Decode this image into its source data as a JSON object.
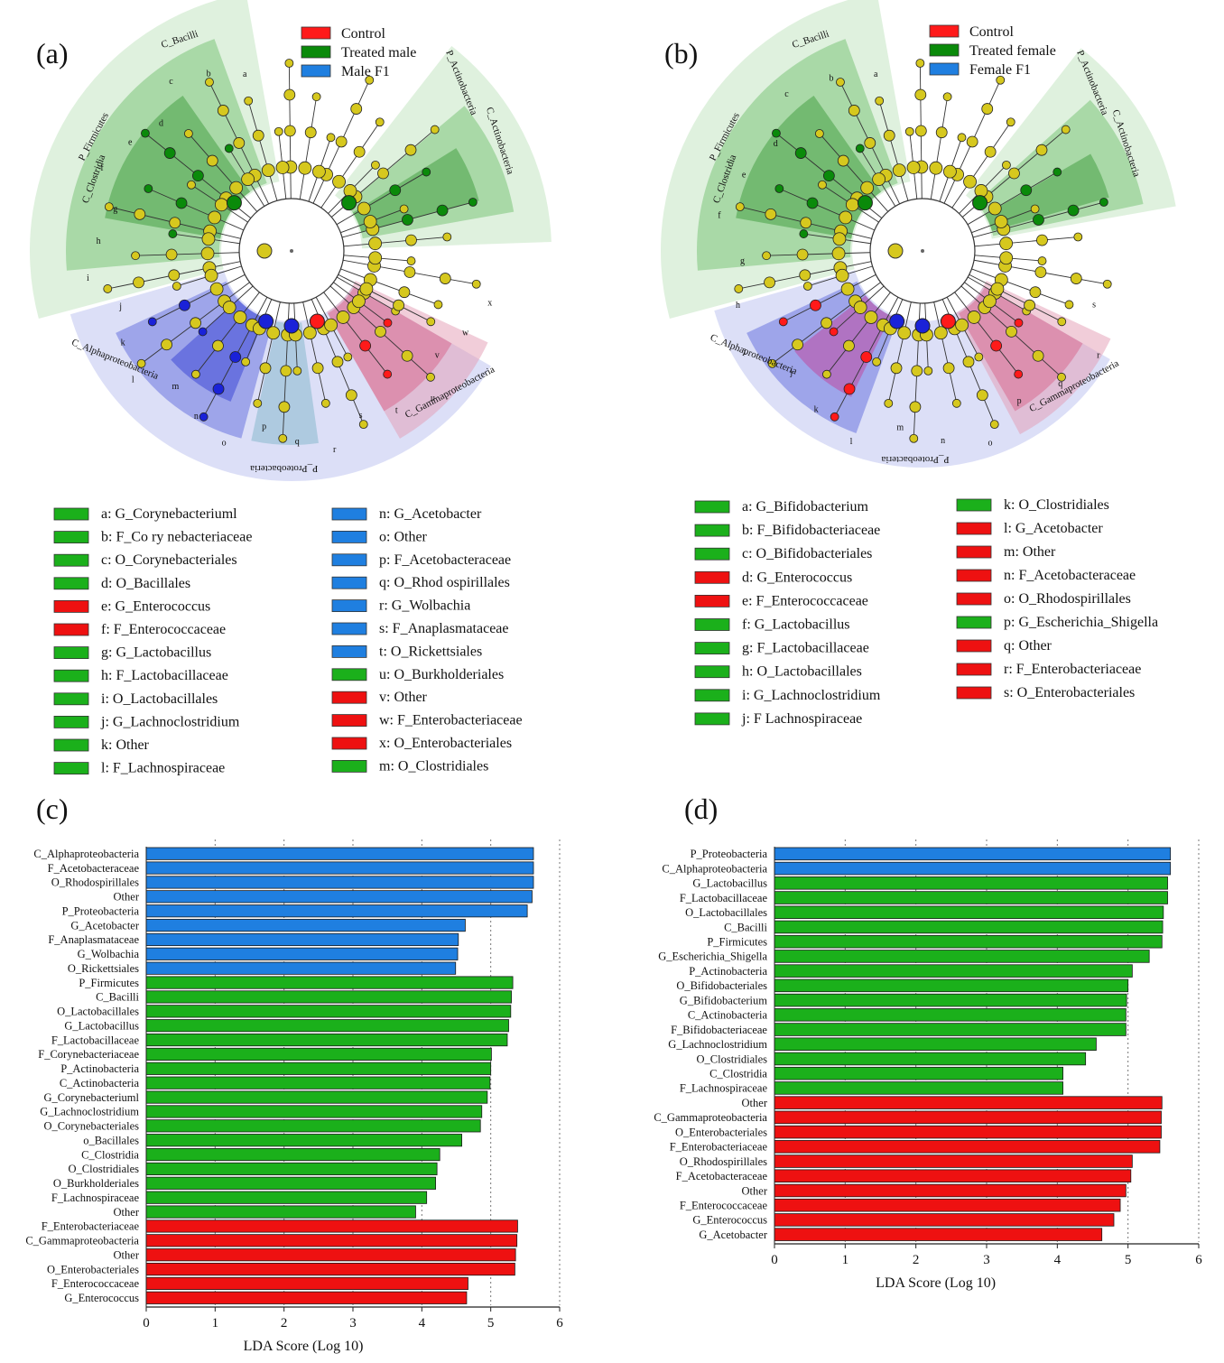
{
  "figure_title": "LEfSe cladograms and LDA score bar charts",
  "colors": {
    "control": "#ff1a1a",
    "treated": "#0a8a0a",
    "f1": "#1f7fe0",
    "green_bar": "#1bb01b",
    "blue_bar": "#1f7fe0",
    "red_bar": "#ee1111",
    "node_default": "#d6c81e",
    "green_sector": "#bfe3bd",
    "blue_sector": "#b9bff0",
    "red_sector": "#e49bb4"
  },
  "panel_a": {
    "label": "(a)",
    "legend": [
      "Control",
      "Treated male",
      "Male F1"
    ],
    "sector_labels": [
      "P_Firmicutes",
      "C_Bacilli",
      "C_Clostridia",
      "P_Actinobacteria",
      "C_Actinobacteria",
      "C_Alphaproteobacteria",
      "P_Proteobacteria",
      "C_Gammaproteobacteria"
    ],
    "inner_letters": [
      "a",
      "b",
      "c",
      "d",
      "e",
      "f",
      "g",
      "h",
      "i",
      "j",
      "k",
      "l",
      "m",
      "n",
      "o",
      "p",
      "q",
      "r",
      "s",
      "t",
      "u",
      "v",
      "w",
      "x"
    ],
    "key_left": [
      {
        "text": "a:  G_Corynebacteriuml",
        "color": "green"
      },
      {
        "text": "b:  F_Co ry nebacteriaceae",
        "color": "green"
      },
      {
        "text": "c:  O_Corynebacteriales",
        "color": "green"
      },
      {
        "text": "d:  O_Bacillales",
        "color": "green"
      },
      {
        "text": "e:  G_Enterococcus",
        "color": "red"
      },
      {
        "text": "f:  F_Enterococcaceae",
        "color": "red"
      },
      {
        "text": "g:  G_Lactobacillus",
        "color": "green"
      },
      {
        "text": "h:  F_Lactobacillaceae",
        "color": "green"
      },
      {
        "text": "i:  O_Lactobacillales",
        "color": "green"
      },
      {
        "text": "j:  G_Lachnoclostridium",
        "color": "green"
      },
      {
        "text": "k:  Other",
        "color": "green"
      },
      {
        "text": "l:  F_Lachnospiraceae",
        "color": "green"
      }
    ],
    "key_right": [
      {
        "text": "n:  G_Acetobacter",
        "color": "blue"
      },
      {
        "text": "o:   Other",
        "color": "blue"
      },
      {
        "text": "p:  F_Acetobacteraceae",
        "color": "blue"
      },
      {
        "text": "q:  O_Rhod ospirillales",
        "color": "blue"
      },
      {
        "text": "r:   G_Wolbachia",
        "color": "blue"
      },
      {
        "text": "s:   F_Anaplasmataceae",
        "color": "blue"
      },
      {
        "text": "t:   O_Rickettsiales",
        "color": "blue"
      },
      {
        "text": "u:   O_Burkholderiales",
        "color": "green"
      },
      {
        "text": "v:   Other",
        "color": "red"
      },
      {
        "text": "w:  F_Enterobacteriaceae",
        "color": "red"
      },
      {
        "text": "x:   O_Enterobacteriales",
        "color": "red"
      },
      {
        "text": "m:  O_Clostridiales",
        "color": "green"
      }
    ]
  },
  "panel_b": {
    "label": "(b)",
    "legend": [
      "Control",
      "Treated female",
      "Female F1"
    ],
    "sector_labels": [
      "P_Firmicutes",
      "C_Bacilli",
      "C_Clostridia",
      "P_Actinobacteria",
      "C_Actinobacteria",
      "C_Alphaproteobacteria",
      "P_Proteobacteria",
      "C_Gammaproteobacteria"
    ],
    "inner_letters": [
      "a",
      "b",
      "c",
      "d",
      "e",
      "f",
      "g",
      "h",
      "i",
      "j",
      "k",
      "l",
      "m",
      "n",
      "o",
      "p",
      "q",
      "r",
      "s"
    ],
    "key_left": [
      {
        "text": "a: G_Bifidobacterium",
        "color": "green"
      },
      {
        "text": "b: F_Bifidobacteriaceae",
        "color": "green"
      },
      {
        "text": "c: O_Bifidobacteriales",
        "color": "green"
      },
      {
        "text": "d: G_Enterococcus",
        "color": "red"
      },
      {
        "text": "e: F_Enterococcaceae",
        "color": "red"
      },
      {
        "text": "f: G_Lactobacillus",
        "color": "green"
      },
      {
        "text": "g: F_Lactobacillaceae",
        "color": "green"
      },
      {
        "text": "h: O_Lactobacillales",
        "color": "green"
      },
      {
        "text": "i: G_Lachnoclostridium",
        "color": "green"
      },
      {
        "text": "j: F Lachnospiraceae",
        "color": "green"
      }
    ],
    "key_right": [
      {
        "text": "k: O_Clostridiales",
        "color": "green"
      },
      {
        "text": "l: G_Acetobacter",
        "color": "red"
      },
      {
        "text": "m: Other",
        "color": "red"
      },
      {
        "text": "n: F_Acetobacteraceae",
        "color": "red"
      },
      {
        "text": "o: O_Rhodospirillales",
        "color": "red"
      },
      {
        "text": "p: G_Escherichia_Shigella",
        "color": "green"
      },
      {
        "text": "q: Other",
        "color": "red"
      },
      {
        "text": "r: F_Enterobacteriaceae",
        "color": "red"
      },
      {
        "text": "s: O_Enterobacteriales",
        "color": "red"
      }
    ]
  },
  "chart_data": [
    {
      "panel": "(c)",
      "type": "bar",
      "orientation": "horizontal",
      "title": "",
      "xlabel": "LDA Score  (Log 10)",
      "ylabel": "",
      "xlim": [
        0,
        6
      ],
      "xticks": [
        0,
        1,
        2,
        3,
        4,
        5,
        6
      ],
      "grid": "dotted vertical",
      "categories": [
        "C_Alphaproteobacteria",
        "F_Acetobacteraceae",
        "O_Rhodospirillales",
        "Other",
        "P_Proteobacteria",
        "G_Acetobacter",
        "F_Anaplasmataceae",
        "G_Wolbachia",
        "O_Rickettsiales",
        "P_Firmicutes",
        "C_Bacilli",
        "O_Lactobacillales",
        "G_Lactobacillus",
        "F_Lactobacillaceae",
        "F_Corynebacteriaceae",
        "P_Actinobacteria",
        "C_Actinobacteria",
        "G_Corynebacteriuml",
        "G_Lachnoclostridium",
        "O_Corynebacteriales",
        "o_Bacillales",
        "C_Clostridia",
        "O_Clostridiales",
        "O_Burkholderiales",
        "F_Lachnospiraceae",
        "Other",
        "F_Enterobacteriaceae",
        "C_Gammaproteobacteria",
        "Other",
        "O_Enterobacteriales",
        "F_Enterococcaceae",
        "G_Enterococcus"
      ],
      "values": [
        5.62,
        5.62,
        5.62,
        5.6,
        5.53,
        4.63,
        4.53,
        4.52,
        4.49,
        5.32,
        5.3,
        5.29,
        5.26,
        5.24,
        5.01,
        5.0,
        4.99,
        4.95,
        4.87,
        4.85,
        4.58,
        4.26,
        4.22,
        4.2,
        4.07,
        3.91,
        5.39,
        5.38,
        5.36,
        5.35,
        4.67,
        4.65
      ],
      "groups": [
        "blue",
        "blue",
        "blue",
        "blue",
        "blue",
        "blue",
        "blue",
        "blue",
        "blue",
        "green",
        "green",
        "green",
        "green",
        "green",
        "green",
        "green",
        "green",
        "green",
        "green",
        "green",
        "green",
        "green",
        "green",
        "green",
        "green",
        "green",
        "red",
        "red",
        "red",
        "red",
        "red",
        "red"
      ]
    },
    {
      "panel": "(d)",
      "type": "bar",
      "orientation": "horizontal",
      "title": "",
      "xlabel": "LDA Score  (Log 10)",
      "ylabel": "",
      "xlim": [
        0,
        6
      ],
      "xticks": [
        0,
        1,
        2,
        3,
        4,
        5,
        6
      ],
      "grid": "dotted vertical",
      "categories": [
        "P_Proteobacteria",
        "C_Alphaproteobacteria",
        "G_Lactobacillus",
        "F_Lactobacillaceae",
        "O_Lactobacillales",
        "C_Bacilli",
        "P_Firmicutes",
        "G_Escherichia_Shigella",
        "P_Actinobacteria",
        "O_Bifidobacteriales",
        "G_Bifidobacterium",
        "C_Actinobacteria",
        "F_Bifidobacteriaceae",
        "G_Lachnoclostridium",
        "O_Clostridiales",
        "C_Clostridia",
        "F_Lachnospiraceae",
        "Other",
        "C_Gammaproteobacteria",
        "O_Enterobacteriales",
        "F_Enterobacteriaceae",
        "O_Rhodospirillales",
        "F_Acetobacteraceae",
        "Other",
        "F_Enterococcaceae",
        "G_Enterococcus",
        "G_Acetobacter"
      ],
      "values": [
        5.6,
        5.6,
        5.56,
        5.56,
        5.5,
        5.49,
        5.48,
        5.3,
        5.06,
        5.0,
        4.98,
        4.97,
        4.97,
        4.55,
        4.4,
        4.08,
        4.08,
        5.48,
        5.47,
        5.47,
        5.45,
        5.06,
        5.04,
        4.97,
        4.89,
        4.8,
        4.63
      ],
      "groups": [
        "blue",
        "blue",
        "green",
        "green",
        "green",
        "green",
        "green",
        "green",
        "green",
        "green",
        "green",
        "green",
        "green",
        "green",
        "green",
        "green",
        "green",
        "red",
        "red",
        "red",
        "red",
        "red",
        "red",
        "red",
        "red",
        "red",
        "red"
      ]
    }
  ]
}
